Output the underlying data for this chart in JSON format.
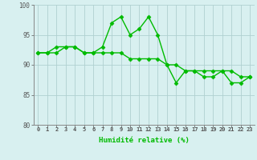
{
  "line1": [
    92,
    92,
    93,
    93,
    93,
    92,
    92,
    93,
    97,
    98,
    95,
    96,
    98,
    95,
    90,
    87,
    89,
    89,
    88,
    88,
    89,
    87,
    87,
    88
  ],
  "line2": [
    92,
    92,
    92,
    93,
    93,
    92,
    92,
    92,
    92,
    92,
    91,
    91,
    91,
    91,
    90,
    90,
    89,
    89,
    89,
    89,
    89,
    89,
    88,
    88
  ],
  "x": [
    0,
    1,
    2,
    3,
    4,
    5,
    6,
    7,
    8,
    9,
    10,
    11,
    12,
    13,
    14,
    15,
    16,
    17,
    18,
    19,
    20,
    21,
    22,
    23
  ],
  "xlabel": "Humidité relative (%)",
  "ylim": [
    80,
    100
  ],
  "xlim": [
    -0.5,
    23.5
  ],
  "yticks": [
    80,
    85,
    90,
    95,
    100
  ],
  "xticks": [
    0,
    1,
    2,
    3,
    4,
    5,
    6,
    7,
    8,
    9,
    10,
    11,
    12,
    13,
    14,
    15,
    16,
    17,
    18,
    19,
    20,
    21,
    22,
    23
  ],
  "xtick_labels": [
    "0",
    "1",
    "2",
    "3",
    "4",
    "5",
    "6",
    "7",
    "8",
    "9",
    "10",
    "11",
    "12",
    "13",
    "14",
    "15",
    "16",
    "17",
    "18",
    "19",
    "20",
    "21",
    "22",
    "23"
  ],
  "line_color": "#00bb00",
  "bg_color": "#d8f0f0",
  "grid_color": "#b0d0d0",
  "marker": "D",
  "markersize": 2.5,
  "linewidth": 1.0,
  "tick_fontsize": 5.0,
  "xlabel_fontsize": 6.5,
  "ylabel_fontsize": 6.0
}
